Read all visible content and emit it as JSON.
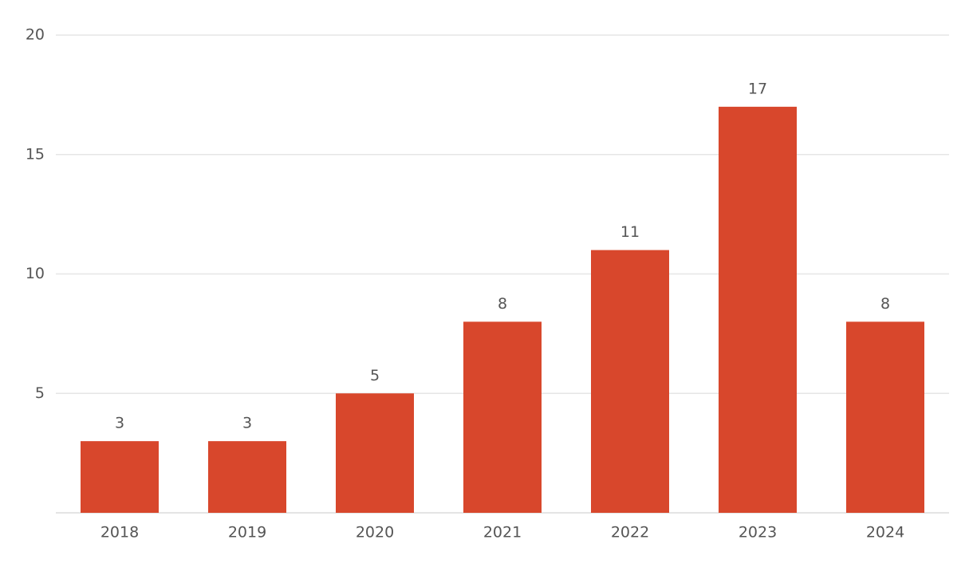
{
  "chart_data": {
    "type": "bar",
    "title": "",
    "xlabel": "",
    "ylabel": "",
    "categories": [
      "2018",
      "2019",
      "2020",
      "2021",
      "2022",
      "2023",
      "2024"
    ],
    "values": [
      3,
      3,
      5,
      8,
      11,
      17,
      8
    ],
    "data_labels": [
      "3",
      "3",
      "5",
      "8",
      "11",
      "17",
      "8"
    ],
    "ylim": [
      0,
      20
    ],
    "yticks": [
      5,
      10,
      15,
      20
    ],
    "ytick_labels": [
      "5",
      "10",
      "15",
      "20"
    ],
    "grid": true,
    "legend": "none",
    "colors": {
      "bar": "#d8472c",
      "grid": "#e6e6e6",
      "text": "#555555"
    }
  }
}
